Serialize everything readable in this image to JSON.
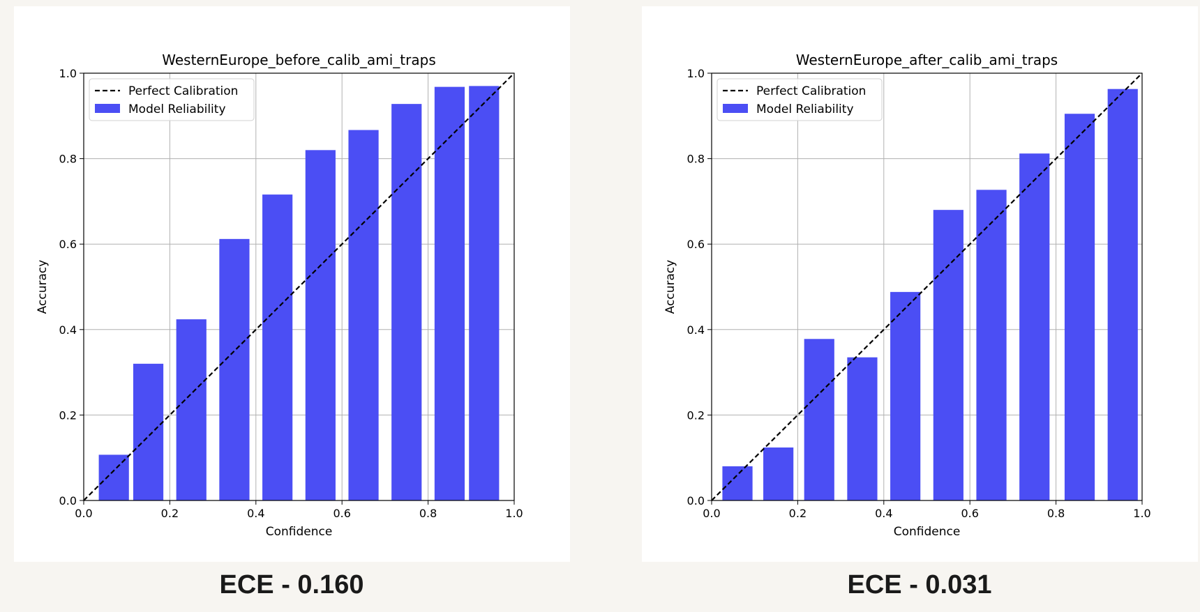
{
  "chart_data": [
    {
      "type": "bar",
      "title": "WesternEurope_before_calib_ami_traps",
      "xlabel": "Confidence",
      "ylabel": "Accuracy",
      "xlim": [
        0.0,
        1.0
      ],
      "ylim": [
        0.0,
        1.0
      ],
      "xticks": [
        "0.0",
        "0.2",
        "0.4",
        "0.6",
        "0.8",
        "1.0"
      ],
      "yticks": [
        "0.0",
        "0.2",
        "0.4",
        "0.6",
        "0.8",
        "1.0"
      ],
      "grid": true,
      "legend_position": "top-left",
      "legend": [
        "Perfect Calibration",
        "Model Reliability"
      ],
      "bar_color": "#4b4ef4",
      "bars": [
        {
          "x": 0.07,
          "value": 0.107
        },
        {
          "x": 0.15,
          "value": 0.32
        },
        {
          "x": 0.25,
          "value": 0.424
        },
        {
          "x": 0.35,
          "value": 0.612
        },
        {
          "x": 0.45,
          "value": 0.716
        },
        {
          "x": 0.55,
          "value": 0.82
        },
        {
          "x": 0.65,
          "value": 0.867
        },
        {
          "x": 0.75,
          "value": 0.928
        },
        {
          "x": 0.85,
          "value": 0.968
        },
        {
          "x": 0.93,
          "value": 0.97
        }
      ],
      "caption": "ECE - 0.160"
    },
    {
      "type": "bar",
      "title": "WesternEurope_after_calib_ami_traps",
      "xlabel": "Confidence",
      "ylabel": "Accuracy",
      "xlim": [
        0.0,
        1.0
      ],
      "ylim": [
        0.0,
        1.0
      ],
      "xticks": [
        "0.0",
        "0.2",
        "0.4",
        "0.6",
        "0.8",
        "1.0"
      ],
      "yticks": [
        "0.0",
        "0.2",
        "0.4",
        "0.6",
        "0.8",
        "1.0"
      ],
      "grid": true,
      "legend_position": "top-left",
      "legend": [
        "Perfect Calibration",
        "Model Reliability"
      ],
      "bar_color": "#4b4ef4",
      "bars": [
        {
          "x": 0.06,
          "value": 0.08
        },
        {
          "x": 0.155,
          "value": 0.124
        },
        {
          "x": 0.25,
          "value": 0.378
        },
        {
          "x": 0.35,
          "value": 0.335
        },
        {
          "x": 0.45,
          "value": 0.488
        },
        {
          "x": 0.55,
          "value": 0.68
        },
        {
          "x": 0.65,
          "value": 0.727
        },
        {
          "x": 0.75,
          "value": 0.812
        },
        {
          "x": 0.855,
          "value": 0.905
        },
        {
          "x": 0.955,
          "value": 0.963
        }
      ],
      "caption": "ECE - 0.031"
    }
  ]
}
